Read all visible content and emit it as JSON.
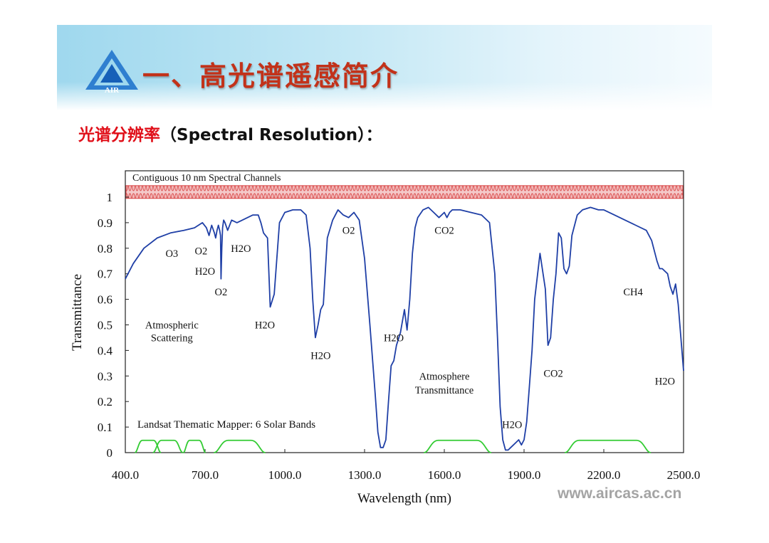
{
  "header": {
    "logo_text": "AIR",
    "title": "一、高光谱遥感简介"
  },
  "subtitle": {
    "cn": "光谱分辨率",
    "en": "（Spectral Resolution）："
  },
  "watermark": "www.aircas.ac.cn",
  "colors": {
    "transmittance_line": "#1f3fa6",
    "landsat_bands": "#33cc33",
    "channel_band": "#d84040",
    "title_red": "#c2321a"
  },
  "chart_data": {
    "type": "line",
    "xlabel": "Wavelength (nm)",
    "ylabel": "Transmittance",
    "xlim": [
      400,
      2500
    ],
    "ylim": [
      0,
      1
    ],
    "grid": false,
    "x_ticks": [
      "400.0",
      "700.0",
      "1000.0",
      "1300.0",
      "1600.0",
      "1900.0",
      "2200.0",
      "2500.0"
    ],
    "y_ticks": [
      "0",
      "0.1",
      "0.2",
      "0.3",
      "0.4",
      "0.5",
      "0.6",
      "0.7",
      "0.8",
      "0.9",
      "1"
    ],
    "top_band": {
      "label": "Contiguous 10 nm Spectral Channels",
      "y_from": 0.995,
      "y_to": 1.045
    },
    "bottom_label": "Landsat Thematic Mapper: 6 Solar Bands",
    "series": [
      {
        "role": "transmittance",
        "x": [
          400,
          430,
          470,
          520,
          570,
          620,
          660,
          690,
          705,
          715,
          725,
          735,
          740,
          745,
          750,
          755,
          758,
          760,
          763,
          766,
          770,
          775,
          785,
          800,
          820,
          840,
          860,
          880,
          900,
          910,
          920,
          935,
          945,
          960,
          980,
          1000,
          1030,
          1060,
          1080,
          1095,
          1105,
          1115,
          1125,
          1135,
          1145,
          1160,
          1180,
          1200,
          1220,
          1240,
          1260,
          1280,
          1300,
          1320,
          1340,
          1350,
          1360,
          1370,
          1380,
          1390,
          1400,
          1410,
          1420,
          1435,
          1450,
          1460,
          1470,
          1480,
          1490,
          1500,
          1520,
          1540,
          1560,
          1580,
          1600,
          1610,
          1620,
          1630,
          1640,
          1660,
          1700,
          1740,
          1770,
          1790,
          1800,
          1810,
          1820,
          1830,
          1840,
          1850,
          1860,
          1870,
          1880,
          1890,
          1900,
          1910,
          1920,
          1930,
          1940,
          1960,
          1980,
          1990,
          2000,
          2010,
          2020,
          2030,
          2040,
          2050,
          2060,
          2070,
          2080,
          2100,
          2120,
          2150,
          2180,
          2200,
          2240,
          2280,
          2320,
          2360,
          2380,
          2400,
          2410,
          2420,
          2440,
          2450,
          2460,
          2470,
          2480,
          2500
        ],
        "y": [
          0.68,
          0.74,
          0.8,
          0.84,
          0.86,
          0.87,
          0.88,
          0.9,
          0.88,
          0.85,
          0.89,
          0.86,
          0.84,
          0.87,
          0.89,
          0.87,
          0.85,
          0.68,
          0.8,
          0.88,
          0.91,
          0.9,
          0.87,
          0.91,
          0.9,
          0.91,
          0.92,
          0.93,
          0.93,
          0.9,
          0.86,
          0.84,
          0.57,
          0.62,
          0.9,
          0.94,
          0.95,
          0.95,
          0.93,
          0.8,
          0.6,
          0.45,
          0.5,
          0.56,
          0.58,
          0.84,
          0.91,
          0.95,
          0.93,
          0.92,
          0.94,
          0.91,
          0.76,
          0.5,
          0.23,
          0.08,
          0.02,
          0.02,
          0.05,
          0.2,
          0.34,
          0.36,
          0.42,
          0.47,
          0.56,
          0.48,
          0.6,
          0.78,
          0.88,
          0.92,
          0.95,
          0.96,
          0.94,
          0.92,
          0.94,
          0.92,
          0.94,
          0.95,
          0.95,
          0.95,
          0.94,
          0.93,
          0.9,
          0.7,
          0.45,
          0.18,
          0.05,
          0.01,
          0.01,
          0.02,
          0.03,
          0.04,
          0.05,
          0.03,
          0.05,
          0.12,
          0.26,
          0.4,
          0.6,
          0.78,
          0.64,
          0.42,
          0.45,
          0.6,
          0.7,
          0.86,
          0.84,
          0.72,
          0.7,
          0.73,
          0.85,
          0.93,
          0.95,
          0.96,
          0.95,
          0.95,
          0.93,
          0.91,
          0.89,
          0.87,
          0.83,
          0.75,
          0.72,
          0.72,
          0.7,
          0.65,
          0.62,
          0.66,
          0.58,
          0.32
        ]
      }
    ],
    "landsat_bands": [
      {
        "x": [
          450,
          520
        ],
        "y": 0.048
      },
      {
        "x": [
          520,
          600
        ],
        "y": 0.048
      },
      {
        "x": [
          630,
          690
        ],
        "y": 0.048
      },
      {
        "x": [
          760,
          900
        ],
        "y": 0.048
      },
      {
        "x": [
          1550,
          1750
        ],
        "y": 0.048
      },
      {
        "x": [
          2080,
          2350
        ],
        "y": 0.048
      }
    ],
    "annotations": [
      {
        "text": "O3",
        "x": 575,
        "y": 0.78
      },
      {
        "text": "O2",
        "x": 685,
        "y": 0.79
      },
      {
        "text": "H2O",
        "x": 700,
        "y": 0.71
      },
      {
        "text": "O2",
        "x": 760,
        "y": 0.63
      },
      {
        "text": "H2O",
        "x": 835,
        "y": 0.8
      },
      {
        "text": "Atmospheric",
        "x": 575,
        "y": 0.5
      },
      {
        "text": "Scattering",
        "x": 575,
        "y": 0.45
      },
      {
        "text": "H2O",
        "x": 925,
        "y": 0.5
      },
      {
        "text": "H2O",
        "x": 1135,
        "y": 0.38
      },
      {
        "text": "O2",
        "x": 1240,
        "y": 0.87
      },
      {
        "text": "H2O",
        "x": 1410,
        "y": 0.45
      },
      {
        "text": "CO2",
        "x": 1600,
        "y": 0.87
      },
      {
        "text": "Atmosphere",
        "x": 1600,
        "y": 0.3
      },
      {
        "text": "Transmittance",
        "x": 1600,
        "y": 0.245
      },
      {
        "text": "H2O",
        "x": 1855,
        "y": 0.11
      },
      {
        "text": "CO2",
        "x": 2010,
        "y": 0.31
      },
      {
        "text": "CH4",
        "x": 2310,
        "y": 0.63
      },
      {
        "text": "H2O",
        "x": 2430,
        "y": 0.28
      }
    ]
  }
}
